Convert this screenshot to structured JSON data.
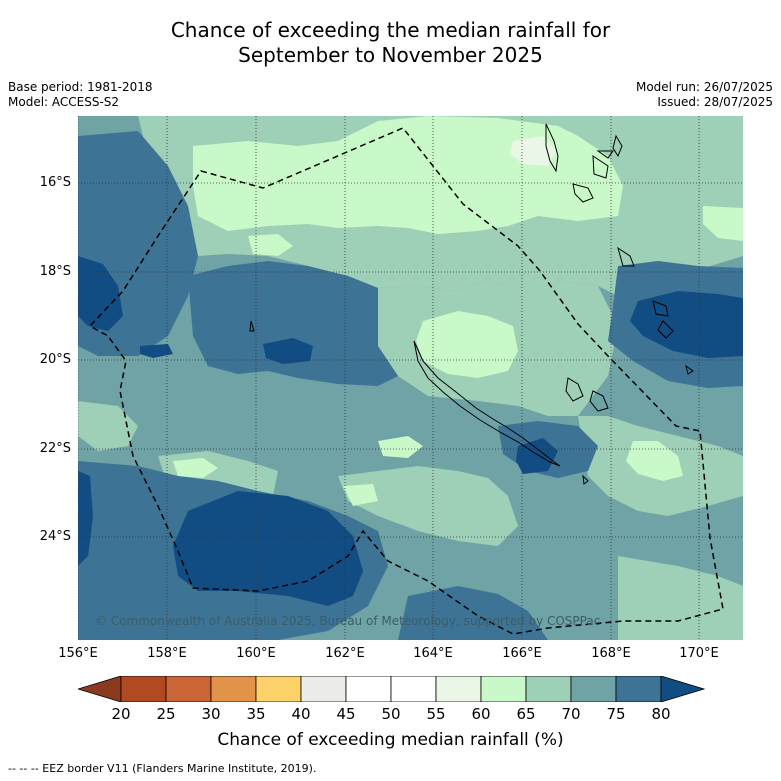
{
  "title_line1": "Chance of exceeding the median rainfall for",
  "title_line2": "September to November 2025",
  "base_period": "Base period: 1981-2018",
  "model": "Model: ACCESS-S2",
  "model_run": "Model run: 26/07/2025",
  "issued": "Issued: 28/07/2025",
  "lat_labels": [
    "16°S",
    "18°S",
    "20°S",
    "22°S",
    "24°S"
  ],
  "lon_labels": [
    "156°E",
    "158°E",
    "160°E",
    "162°E",
    "164°E",
    "166°E",
    "168°E",
    "170°E"
  ],
  "copyright": "© Commonwealth of Australia 2025, Bureau of Meteorology, supported by COSPPac",
  "colorbar": {
    "labels": [
      "20",
      "25",
      "30",
      "35",
      "40",
      "45",
      "50",
      "55",
      "60",
      "65",
      "70",
      "75",
      "80"
    ],
    "title": "Chance of exceeding median rainfall (%)",
    "colors": [
      "#8b3a1f",
      "#b14a22",
      "#cc6535",
      "#e09349",
      "#fdd16a",
      "#ecece8",
      "#ffffff",
      "#ffffff",
      "#eaf7e6",
      "#c9f9c8",
      "#9ecfb7",
      "#6fa3a5",
      "#3d7395",
      "#114c83"
    ]
  },
  "footnote": "-- -- -- EEZ border V11 (Flanders Marine Institute, 2019).",
  "map_colors": {
    "c60_65": "#c9f9c8",
    "c65_70": "#9ecfb7",
    "c70_75": "#6fa3a5",
    "c75_80": "#3d7395",
    "c80plus": "#114c83",
    "c55_60": "#eaf7e6"
  }
}
